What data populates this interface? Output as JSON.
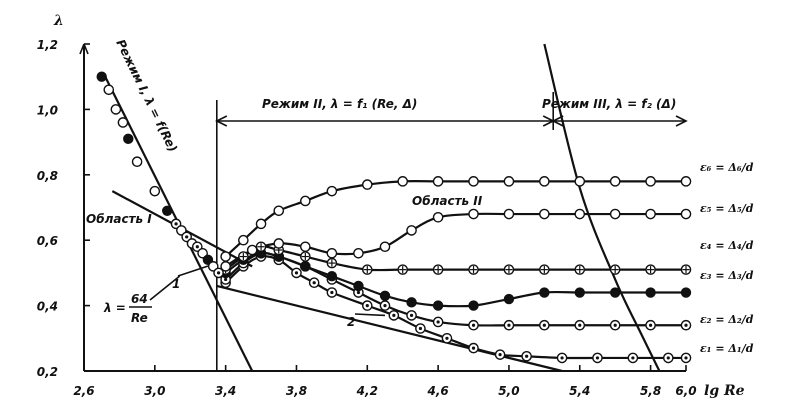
{
  "chart_data": {
    "type": "scatter",
    "xlabel": "lg Re",
    "ylabel": "λ",
    "xlim": [
      2.6,
      6.0
    ],
    "ylim": [
      0.2,
      1.2
    ],
    "xticks": [
      "2,6",
      "3,0",
      "3,4",
      "3,8",
      "4,2",
      "4,6",
      "5,0",
      "5,4",
      "5,8",
      "6,0"
    ],
    "xtick_values": [
      2.6,
      3.0,
      3.4,
      3.8,
      4.2,
      4.6,
      5.0,
      5.4,
      5.8,
      6.0
    ],
    "yticks": [
      "0,2",
      "0,4",
      "0,6",
      "0,8",
      "1,0",
      "1,2"
    ],
    "ytick_values": [
      0.2,
      0.4,
      0.6,
      0.8,
      1.0,
      1.2
    ],
    "annotations": {
      "regime1": "Режим I, λ = f(Re)",
      "regime2": "Режим II, λ = f₁ (Re, Δ)",
      "regime3": "Режим III, λ = f₂ (Δ)",
      "area1": "Область I",
      "area2": "Область II",
      "laminar_formula_lhs": "λ =",
      "laminar_num": "64",
      "laminar_den": "Re",
      "line1": "1",
      "line2": "2"
    },
    "laminar_line": {
      "x": [
        2.72,
        3.55
      ],
      "y": [
        1.1,
        0.2
      ]
    },
    "line1": {
      "x": [
        2.76,
        3.55
      ],
      "y": [
        0.75,
        0.52
      ]
    },
    "line2": {
      "x": [
        3.35,
        5.3
      ],
      "y": [
        0.46,
        0.2
      ]
    },
    "rough_boundary": {
      "x": [
        5.2,
        5.4,
        5.6,
        5.75,
        5.85
      ],
      "y": [
        1.2,
        0.76,
        0.48,
        0.31,
        0.2
      ]
    },
    "series": [
      {
        "label": "ε₁ = Δ₁/d",
        "marker": "dot-circle",
        "x": [
          3.4,
          3.5,
          3.6,
          3.7,
          3.8,
          3.9,
          4.0,
          4.2,
          4.35,
          4.5,
          4.65,
          4.8,
          4.95,
          5.1,
          5.3,
          5.5,
          5.7,
          5.9,
          6.0
        ],
        "y": [
          0.47,
          0.52,
          0.55,
          0.54,
          0.5,
          0.47,
          0.44,
          0.4,
          0.37,
          0.33,
          0.3,
          0.27,
          0.25,
          0.245,
          0.24,
          0.24,
          0.24,
          0.24,
          0.24
        ]
      },
      {
        "label": "ε₂ = Δ₂/d",
        "marker": "dot-circle",
        "x": [
          3.4,
          3.5,
          3.6,
          3.7,
          3.85,
          4.0,
          4.15,
          4.3,
          4.45,
          4.6,
          4.8,
          5.0,
          5.2,
          5.4,
          5.6,
          5.8,
          6.0
        ],
        "y": [
          0.48,
          0.53,
          0.56,
          0.55,
          0.52,
          0.48,
          0.44,
          0.4,
          0.37,
          0.35,
          0.34,
          0.34,
          0.34,
          0.34,
          0.34,
          0.34,
          0.34
        ]
      },
      {
        "label": "ε₃ = Δ₃/d",
        "marker": "filled",
        "x": [
          3.4,
          3.5,
          3.6,
          3.7,
          3.85,
          4.0,
          4.15,
          4.3,
          4.45,
          4.6,
          4.8,
          5.0,
          5.2,
          5.4,
          5.6,
          5.8,
          6.0
        ],
        "y": [
          0.5,
          0.54,
          0.56,
          0.55,
          0.52,
          0.49,
          0.46,
          0.43,
          0.41,
          0.4,
          0.4,
          0.42,
          0.44,
          0.44,
          0.44,
          0.44,
          0.44
        ]
      },
      {
        "label": "ε₄ = Δ₄/d",
        "marker": "cross-circle",
        "x": [
          3.4,
          3.5,
          3.6,
          3.7,
          3.85,
          4.0,
          4.2,
          4.4,
          4.6,
          4.8,
          5.0,
          5.2,
          5.4,
          5.6,
          5.8,
          6.0
        ],
        "y": [
          0.51,
          0.55,
          0.58,
          0.57,
          0.55,
          0.53,
          0.51,
          0.51,
          0.51,
          0.51,
          0.51,
          0.51,
          0.51,
          0.51,
          0.51,
          0.51
        ]
      },
      {
        "label": "ε₅ = Δ₅/d",
        "marker": "open",
        "x": [
          3.4,
          3.55,
          3.7,
          3.85,
          4.0,
          4.15,
          4.3,
          4.45,
          4.6,
          4.8,
          5.0,
          5.2,
          5.4,
          5.6,
          5.8,
          6.0
        ],
        "y": [
          0.52,
          0.57,
          0.59,
          0.58,
          0.56,
          0.56,
          0.58,
          0.63,
          0.67,
          0.68,
          0.68,
          0.68,
          0.68,
          0.68,
          0.68,
          0.68
        ]
      },
      {
        "label": "ε₆ = Δ₆/d",
        "marker": "open",
        "x": [
          3.4,
          3.5,
          3.6,
          3.7,
          3.85,
          4.0,
          4.2,
          4.4,
          4.6,
          4.8,
          5.0,
          5.2,
          5.4,
          5.6,
          5.8,
          6.0
        ],
        "y": [
          0.55,
          0.6,
          0.65,
          0.69,
          0.72,
          0.75,
          0.77,
          0.78,
          0.78,
          0.78,
          0.78,
          0.78,
          0.78,
          0.78,
          0.78,
          0.78
        ]
      }
    ],
    "laminar_points": [
      {
        "x": 2.7,
        "y": 1.1,
        "marker": "filled"
      },
      {
        "x": 2.74,
        "y": 1.06,
        "marker": "open"
      },
      {
        "x": 2.78,
        "y": 1.0,
        "marker": "open"
      },
      {
        "x": 2.82,
        "y": 0.96,
        "marker": "open"
      },
      {
        "x": 2.85,
        "y": 0.91,
        "marker": "filled"
      },
      {
        "x": 2.9,
        "y": 0.84,
        "marker": "open"
      },
      {
        "x": 3.0,
        "y": 0.75,
        "marker": "open"
      },
      {
        "x": 3.07,
        "y": 0.69,
        "marker": "filled"
      },
      {
        "x": 3.12,
        "y": 0.65,
        "marker": "dot-circle"
      },
      {
        "x": 3.15,
        "y": 0.63,
        "marker": "open"
      },
      {
        "x": 3.18,
        "y": 0.61,
        "marker": "dot-circle"
      },
      {
        "x": 3.21,
        "y": 0.59,
        "marker": "open"
      },
      {
        "x": 3.24,
        "y": 0.58,
        "marker": "dot-circle"
      },
      {
        "x": 3.27,
        "y": 0.56,
        "marker": "open"
      },
      {
        "x": 3.3,
        "y": 0.54,
        "marker": "filled"
      },
      {
        "x": 3.33,
        "y": 0.52,
        "marker": "open"
      },
      {
        "x": 3.36,
        "y": 0.5,
        "marker": "dot-circle"
      }
    ]
  }
}
